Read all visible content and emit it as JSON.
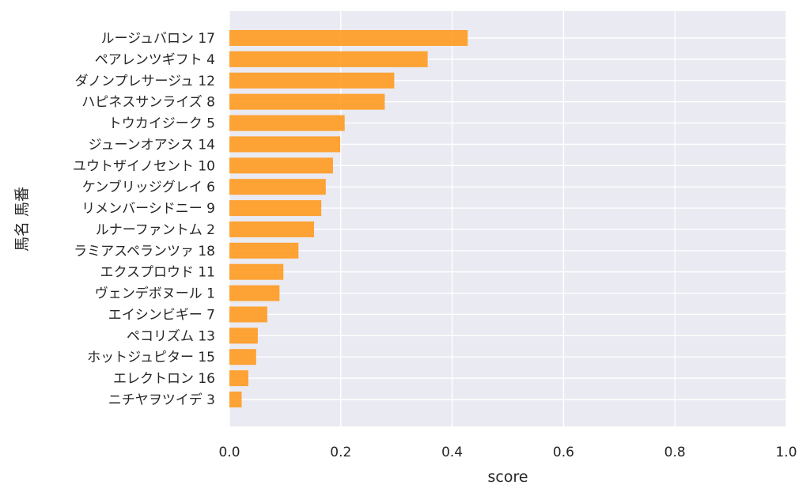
{
  "chart_data": {
    "type": "bar",
    "orientation": "horizontal",
    "xlabel": "score",
    "ylabel": "馬名 馬番",
    "xlim": [
      0.0,
      1.0
    ],
    "x_ticks": [
      "0.0",
      "0.2",
      "0.4",
      "0.6",
      "0.8",
      "1.0"
    ],
    "grid": true,
    "bar_color": "#FF9A1F",
    "background_color": "#EAEAF2",
    "categories": [
      "ルージュバロン 17",
      "ペアレンツギフト 4",
      "ダノンプレサージュ 12",
      "ハピネスサンライズ 8",
      "トウカイジーク 5",
      "ジューンオアシス 14",
      "ユウトザイノセント 10",
      "ケンブリッジグレイ 6",
      "リメンバーシドニー 9",
      "ルナーファントム 2",
      "ラミアスペランツァ 18",
      "エクスプロウド 11",
      "ヴェンデボヌール 1",
      "エイシンビギー 7",
      "ペコリズム 13",
      "ホットジュピター 15",
      "エレクトロン 16",
      "ニチヤヲツイデ 3"
    ],
    "values": [
      0.428,
      0.356,
      0.296,
      0.279,
      0.207,
      0.199,
      0.186,
      0.173,
      0.165,
      0.152,
      0.124,
      0.097,
      0.09,
      0.068,
      0.051,
      0.048,
      0.034,
      0.022
    ]
  }
}
